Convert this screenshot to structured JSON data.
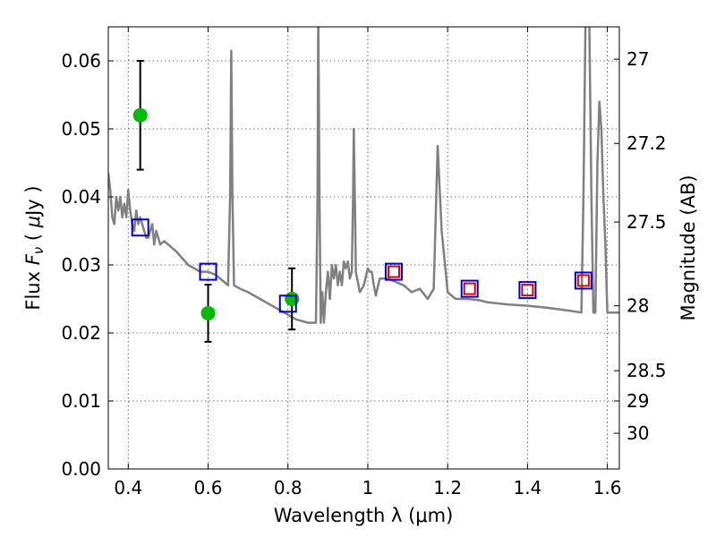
{
  "chart_data": {
    "type": "scatter",
    "xlabel": "Wavelength  λ (μm)",
    "ylabel_parts": [
      "Flux  ",
      "F",
      "ν",
      "  ( ",
      "μ",
      "Jy )"
    ],
    "y2label": "Magnitude (AB)",
    "xlim": [
      0.35,
      1.63
    ],
    "ylim": [
      0.0,
      0.065
    ],
    "grid": true,
    "x_ticks": [
      0.4,
      0.6,
      0.8,
      1.0,
      1.2,
      1.4,
      1.6
    ],
    "x_tick_labels": [
      "0.4",
      "0.6",
      "0.8",
      "1",
      "1.2",
      "1.4",
      "1.6"
    ],
    "y_ticks": [
      0.0,
      0.01,
      0.02,
      0.03,
      0.04,
      0.05,
      0.06
    ],
    "y_tick_labels": [
      "0.00",
      "0.01",
      "0.02",
      "0.03",
      "0.04",
      "0.05",
      "0.06"
    ],
    "y2_ticks": [
      {
        "label": "27",
        "mag": 26.95
      },
      {
        "label": "27.2",
        "mag": 27.2
      },
      {
        "label": "27.5",
        "mag": 27.5
      },
      {
        "label": "28",
        "mag": 27.95
      },
      {
        "label": "28.5",
        "mag": 28.5
      },
      {
        "label": "29",
        "mag": 28.9
      },
      {
        "label": "30",
        "mag": 29.6
      }
    ],
    "series": [
      {
        "kind": "line",
        "color": "#808080",
        "x": [
          0.35,
          0.355,
          0.36,
          0.365,
          0.37,
          0.375,
          0.38,
          0.385,
          0.39,
          0.395,
          0.4,
          0.405,
          0.41,
          0.415,
          0.42,
          0.425,
          0.43,
          0.435,
          0.44,
          0.445,
          0.45,
          0.455,
          0.46,
          0.465,
          0.47,
          0.475,
          0.48,
          0.49,
          0.5,
          0.52,
          0.55,
          0.58,
          0.6,
          0.62,
          0.64,
          0.65,
          0.655,
          0.658,
          0.661,
          0.665,
          0.68,
          0.7,
          0.73,
          0.76,
          0.79,
          0.82,
          0.85,
          0.87,
          0.874,
          0.876,
          0.879,
          0.882,
          0.886,
          0.89,
          0.895,
          0.9,
          0.905,
          0.91,
          0.915,
          0.92,
          0.925,
          0.93,
          0.935,
          0.94,
          0.945,
          0.95,
          0.955,
          0.96,
          0.963,
          0.965,
          0.968,
          0.97,
          0.98,
          0.99,
          1.0,
          1.005,
          1.01,
          1.015,
          1.02,
          1.03,
          1.05,
          1.07,
          1.09,
          1.11,
          1.13,
          1.15,
          1.165,
          1.175,
          1.185,
          1.2,
          1.22,
          1.25,
          1.28,
          1.3,
          1.35,
          1.4,
          1.45,
          1.5,
          1.535,
          1.54,
          1.545,
          1.55,
          1.555,
          1.56,
          1.565,
          1.57,
          1.575,
          1.58,
          1.585,
          1.59,
          1.595,
          1.6,
          1.63
        ],
        "y": [
          0.0435,
          0.041,
          0.037,
          0.036,
          0.04,
          0.038,
          0.04,
          0.037,
          0.039,
          0.037,
          0.041,
          0.038,
          0.036,
          0.035,
          0.038,
          0.036,
          0.037,
          0.036,
          0.035,
          0.034,
          0.034,
          0.035,
          0.036,
          0.033,
          0.035,
          0.034,
          0.033,
          0.0335,
          0.033,
          0.032,
          0.03,
          0.029,
          0.029,
          0.0285,
          0.0275,
          0.027,
          0.04,
          0.0615,
          0.04,
          0.027,
          0.0265,
          0.026,
          0.025,
          0.024,
          0.023,
          0.022,
          0.0215,
          0.0215,
          0.04,
          0.0675,
          0.04,
          0.0215,
          0.026,
          0.0215,
          0.026,
          0.029,
          0.025,
          0.03,
          0.028,
          0.03,
          0.027,
          0.029,
          0.027,
          0.0305,
          0.0295,
          0.0305,
          0.028,
          0.029,
          0.04,
          0.05,
          0.038,
          0.029,
          0.026,
          0.027,
          0.0295,
          0.029,
          0.029,
          0.027,
          0.0255,
          0.028,
          0.028,
          0.0275,
          0.027,
          0.026,
          0.0265,
          0.025,
          0.0265,
          0.0475,
          0.035,
          0.026,
          0.025,
          0.025,
          0.0248,
          0.0245,
          0.0242,
          0.024,
          0.0237,
          0.0233,
          0.023,
          0.04,
          0.065,
          0.068,
          0.065,
          0.04,
          0.023,
          0.023,
          0.045,
          0.054,
          0.05,
          0.04,
          0.033,
          0.023,
          0.023
        ]
      },
      {
        "kind": "points",
        "marker": "circle",
        "color": "#00bb00",
        "x": [
          0.43,
          0.6,
          0.81
        ],
        "y": [
          0.052,
          0.0229,
          0.025
        ],
        "yerr": [
          0.008,
          0.0042,
          0.0045
        ]
      },
      {
        "kind": "points",
        "marker": "square",
        "color": "#0000cc",
        "x": [
          0.43,
          0.6,
          0.8,
          1.065,
          1.255,
          1.4,
          1.54
        ],
        "y": [
          0.0355,
          0.029,
          0.0243,
          0.029,
          0.0265,
          0.0263,
          0.0277
        ]
      },
      {
        "kind": "points",
        "marker": "square",
        "color": "#dd0000",
        "x": [
          1.065,
          1.255,
          1.4,
          1.54
        ],
        "y": [
          0.029,
          0.0265,
          0.0263,
          0.0277
        ]
      }
    ]
  }
}
